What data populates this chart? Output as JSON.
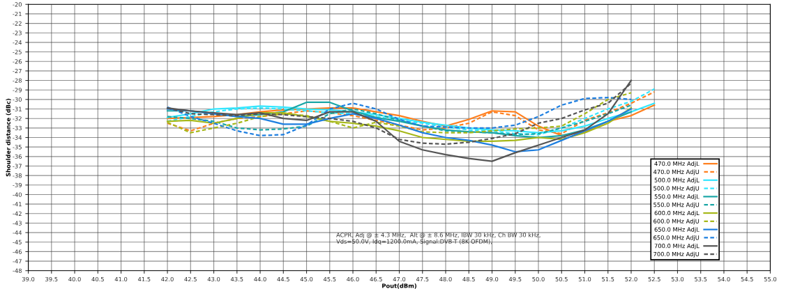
{
  "chart_data": {
    "type": "line",
    "xlabel": "Pout(dBm)",
    "ylabel": "Shoulder distance (dBc)",
    "x": [
      42,
      42.5,
      43,
      43.5,
      44,
      44.5,
      45,
      45.5,
      46,
      46.5,
      47,
      47.5,
      48,
      48.5,
      49,
      49.5,
      50,
      50.5,
      51,
      51.5,
      52,
      52.5
    ],
    "series": [
      {
        "name": "470.0 MHz AdjL",
        "color": "#ff7f1e",
        "line_style": "solid",
        "values": [
          -32.0,
          -31.9,
          -31.8,
          -31.6,
          -31.3,
          -31.1,
          -31.0,
          -30.9,
          -30.9,
          -31.3,
          -31.7,
          -32.3,
          -32.8,
          -32.1,
          -31.2,
          -31.3,
          -32.8,
          -33.8,
          -33.4,
          -32.3,
          -31.7,
          -30.6
        ]
      },
      {
        "name": "470.0 MHz AdjU",
        "color": "#ff7f1e",
        "line_style": "dashed",
        "values": [
          -32.5,
          -33.3,
          -32.5,
          -32.0,
          -31.8,
          -31.5,
          -31.2,
          -31.4,
          -31.7,
          -32.2,
          -32.7,
          -33.2,
          -33.0,
          -32.5,
          -31.3,
          -31.7,
          -33.2,
          -33.6,
          -32.2,
          -31.4,
          -30.4,
          -29.2
        ]
      },
      {
        "name": "500.0 MHz AdjL",
        "color": "#33e6ff",
        "line_style": "solid",
        "values": [
          -31.9,
          -31.5,
          -31.0,
          -30.9,
          -30.7,
          -30.8,
          -31.0,
          -31.1,
          -31.3,
          -31.6,
          -32.0,
          -32.4,
          -32.7,
          -33.0,
          -33.2,
          -33.3,
          -33.5,
          -33.3,
          -32.8,
          -32.0,
          -31.3,
          -30.4
        ]
      },
      {
        "name": "500.0 MHz AdjU",
        "color": "#33e6ff",
        "line_style": "dashed",
        "values": [
          -32.3,
          -31.8,
          -31.3,
          -31.0,
          -30.9,
          -31.0,
          -31.2,
          -31.4,
          -31.5,
          -31.8,
          -32.2,
          -32.5,
          -32.9,
          -33.2,
          -33.3,
          -33.6,
          -33.7,
          -33.0,
          -32.0,
          -31.0,
          -30.2,
          -28.9
        ]
      },
      {
        "name": "550.0 MHz AdjL",
        "color": "#1aa6a6",
        "line_style": "solid",
        "values": [
          -31.2,
          -31.2,
          -31.5,
          -31.8,
          -31.6,
          -31.3,
          -30.3,
          -30.3,
          -31.2,
          -31.9,
          -32.3,
          -32.8,
          -33.2,
          -33.4,
          -33.5,
          -33.8,
          -34.0,
          -33.8,
          -33.2,
          -32.3,
          -31.3,
          null
        ]
      },
      {
        "name": "550.0 MHz AdjU",
        "color": "#1aa6a6",
        "line_style": "dashed",
        "values": [
          -31.8,
          -32.0,
          -32.3,
          -33.0,
          -33.2,
          -33.1,
          -32.8,
          -31.5,
          -31.0,
          -31.5,
          -32.2,
          -32.8,
          -33.3,
          -33.4,
          -33.5,
          -33.7,
          -33.6,
          -33.0,
          -32.3,
          -31.5,
          -30.6,
          null
        ]
      },
      {
        "name": "600.0 MHz AdjL",
        "color": "#a6b81a",
        "line_style": "solid",
        "values": [
          -32.3,
          -32.2,
          -32.5,
          -32.0,
          -31.4,
          -31.4,
          -31.8,
          -32.3,
          -32.5,
          -32.8,
          -33.3,
          -34.0,
          -34.2,
          -34.4,
          -34.4,
          -34.3,
          -34.0,
          -34.2,
          -33.5,
          -32.5,
          -30.9,
          null
        ]
      },
      {
        "name": "600.0 MHz AdjU",
        "color": "#a6b81a",
        "line_style": "dashed",
        "values": [
          -32.4,
          -33.5,
          -33.0,
          -32.5,
          -31.8,
          -31.5,
          -31.7,
          -32.3,
          -33.0,
          -32.4,
          -32.8,
          -33.4,
          -33.5,
          -33.5,
          -33.3,
          -33.1,
          -33.0,
          -32.8,
          -31.5,
          -30.0,
          -29.3,
          null
        ]
      },
      {
        "name": "650.0 MHz AdjL",
        "color": "#1e7fe0",
        "line_style": "solid",
        "values": [
          -31.0,
          -31.2,
          -31.5,
          -31.8,
          -32.0,
          -32.6,
          -32.6,
          -32.0,
          -31.5,
          -32.0,
          -32.7,
          -33.5,
          -34.0,
          -34.3,
          -34.8,
          -35.5,
          -35.3,
          -34.3,
          -33.3,
          -32.3,
          -31.0,
          null
        ]
      },
      {
        "name": "650.0 MHz AdjU",
        "color": "#1e7fe0",
        "line_style": "dashed",
        "values": [
          -30.8,
          -31.8,
          -32.5,
          -33.3,
          -33.8,
          -33.7,
          -32.7,
          -31.0,
          -30.4,
          -31.0,
          -32.1,
          -32.8,
          -32.9,
          -33.0,
          -33.0,
          -32.7,
          -31.8,
          -30.6,
          -29.9,
          -29.8,
          -30.0,
          null
        ]
      },
      {
        "name": "700.0 MHz AdjL",
        "color": "#555555",
        "line_style": "solid",
        "values": [
          -30.9,
          -31.2,
          -31.4,
          -31.6,
          -31.4,
          -32.0,
          -32.2,
          -31.3,
          -31.3,
          -32.3,
          -34.4,
          -35.3,
          -35.8,
          -36.2,
          -36.5,
          -35.6,
          -34.8,
          -34.0,
          -33.2,
          -31.5,
          -28.0,
          null
        ]
      },
      {
        "name": "700.0 MHz AdjU",
        "color": "#555555",
        "line_style": "dashed",
        "values": [
          -30.9,
          -31.5,
          -31.6,
          -31.7,
          -31.5,
          -31.6,
          -31.8,
          -32.0,
          -32.3,
          -33.0,
          -34.2,
          -34.6,
          -34.7,
          -34.5,
          -34.1,
          -33.6,
          -32.5,
          -32.0,
          -31.1,
          -30.4,
          -28.3,
          null
        ]
      }
    ],
    "xlim": [
      39,
      55
    ],
    "xticks": [
      {
        "value": 39,
        "label": "39.0"
      },
      {
        "value": 39.5,
        "label": "39.5"
      },
      {
        "value": 40,
        "label": "40.0"
      },
      {
        "value": 40.5,
        "label": "40.5"
      },
      {
        "value": 41,
        "label": "41.0"
      },
      {
        "value": 41.5,
        "label": "41.5"
      },
      {
        "value": 42,
        "label": "42.0"
      },
      {
        "value": 42.5,
        "label": "42.5"
      },
      {
        "value": 43,
        "label": "43.0"
      },
      {
        "value": 43.5,
        "label": "43.5"
      },
      {
        "value": 44,
        "label": "44.0"
      },
      {
        "value": 44.5,
        "label": "44.5"
      },
      {
        "value": 45,
        "label": "45.0"
      },
      {
        "value": 45.5,
        "label": "45.5"
      },
      {
        "value": 46,
        "label": "46.0"
      },
      {
        "value": 46.5,
        "label": "46.5"
      },
      {
        "value": 47,
        "label": "47.0"
      },
      {
        "value": 47.5,
        "label": "47.5"
      },
      {
        "value": 48,
        "label": "48.0"
      },
      {
        "value": 48.5,
        "label": "48.5"
      },
      {
        "value": 49,
        "label": "49.0"
      },
      {
        "value": 49.5,
        "label": "49.5"
      },
      {
        "value": 50,
        "label": "50.0"
      },
      {
        "value": 50.5,
        "label": "50.5"
      },
      {
        "value": 51,
        "label": "51.0"
      },
      {
        "value": 51.5,
        "label": "51.5"
      },
      {
        "value": 52,
        "label": "52.0"
      },
      {
        "value": 52.5,
        "label": "52.5"
      },
      {
        "value": 53,
        "label": "53.0"
      },
      {
        "value": 53.5,
        "label": "53.5"
      },
      {
        "value": 54,
        "label": "54.0"
      },
      {
        "value": 54.5,
        "label": "54.5"
      },
      {
        "value": 55,
        "label": "55.0"
      }
    ],
    "ylim": [
      -48,
      -20
    ],
    "yticks": [
      -48,
      -47,
      -46,
      -45,
      -44,
      -43,
      -42,
      -41,
      -40,
      -39,
      -38,
      -37,
      -36,
      -35,
      -34,
      -33,
      -32,
      -31,
      -30,
      -29,
      -28,
      -27,
      -26,
      -25,
      -24,
      -23,
      -22,
      -21,
      -20
    ],
    "grid": true,
    "legend": "bottom right",
    "marker": "none",
    "annotations": [
      "ACPR, Adj @ ± 4.3 MHz,  Alt @ ± 8.6 MHz, IBW 30 kHz, Ch BW 30 kHz,\nVds=50.0V, Idq=1200.0mA, Signal:DVB-T (8K OFDM),"
    ]
  }
}
